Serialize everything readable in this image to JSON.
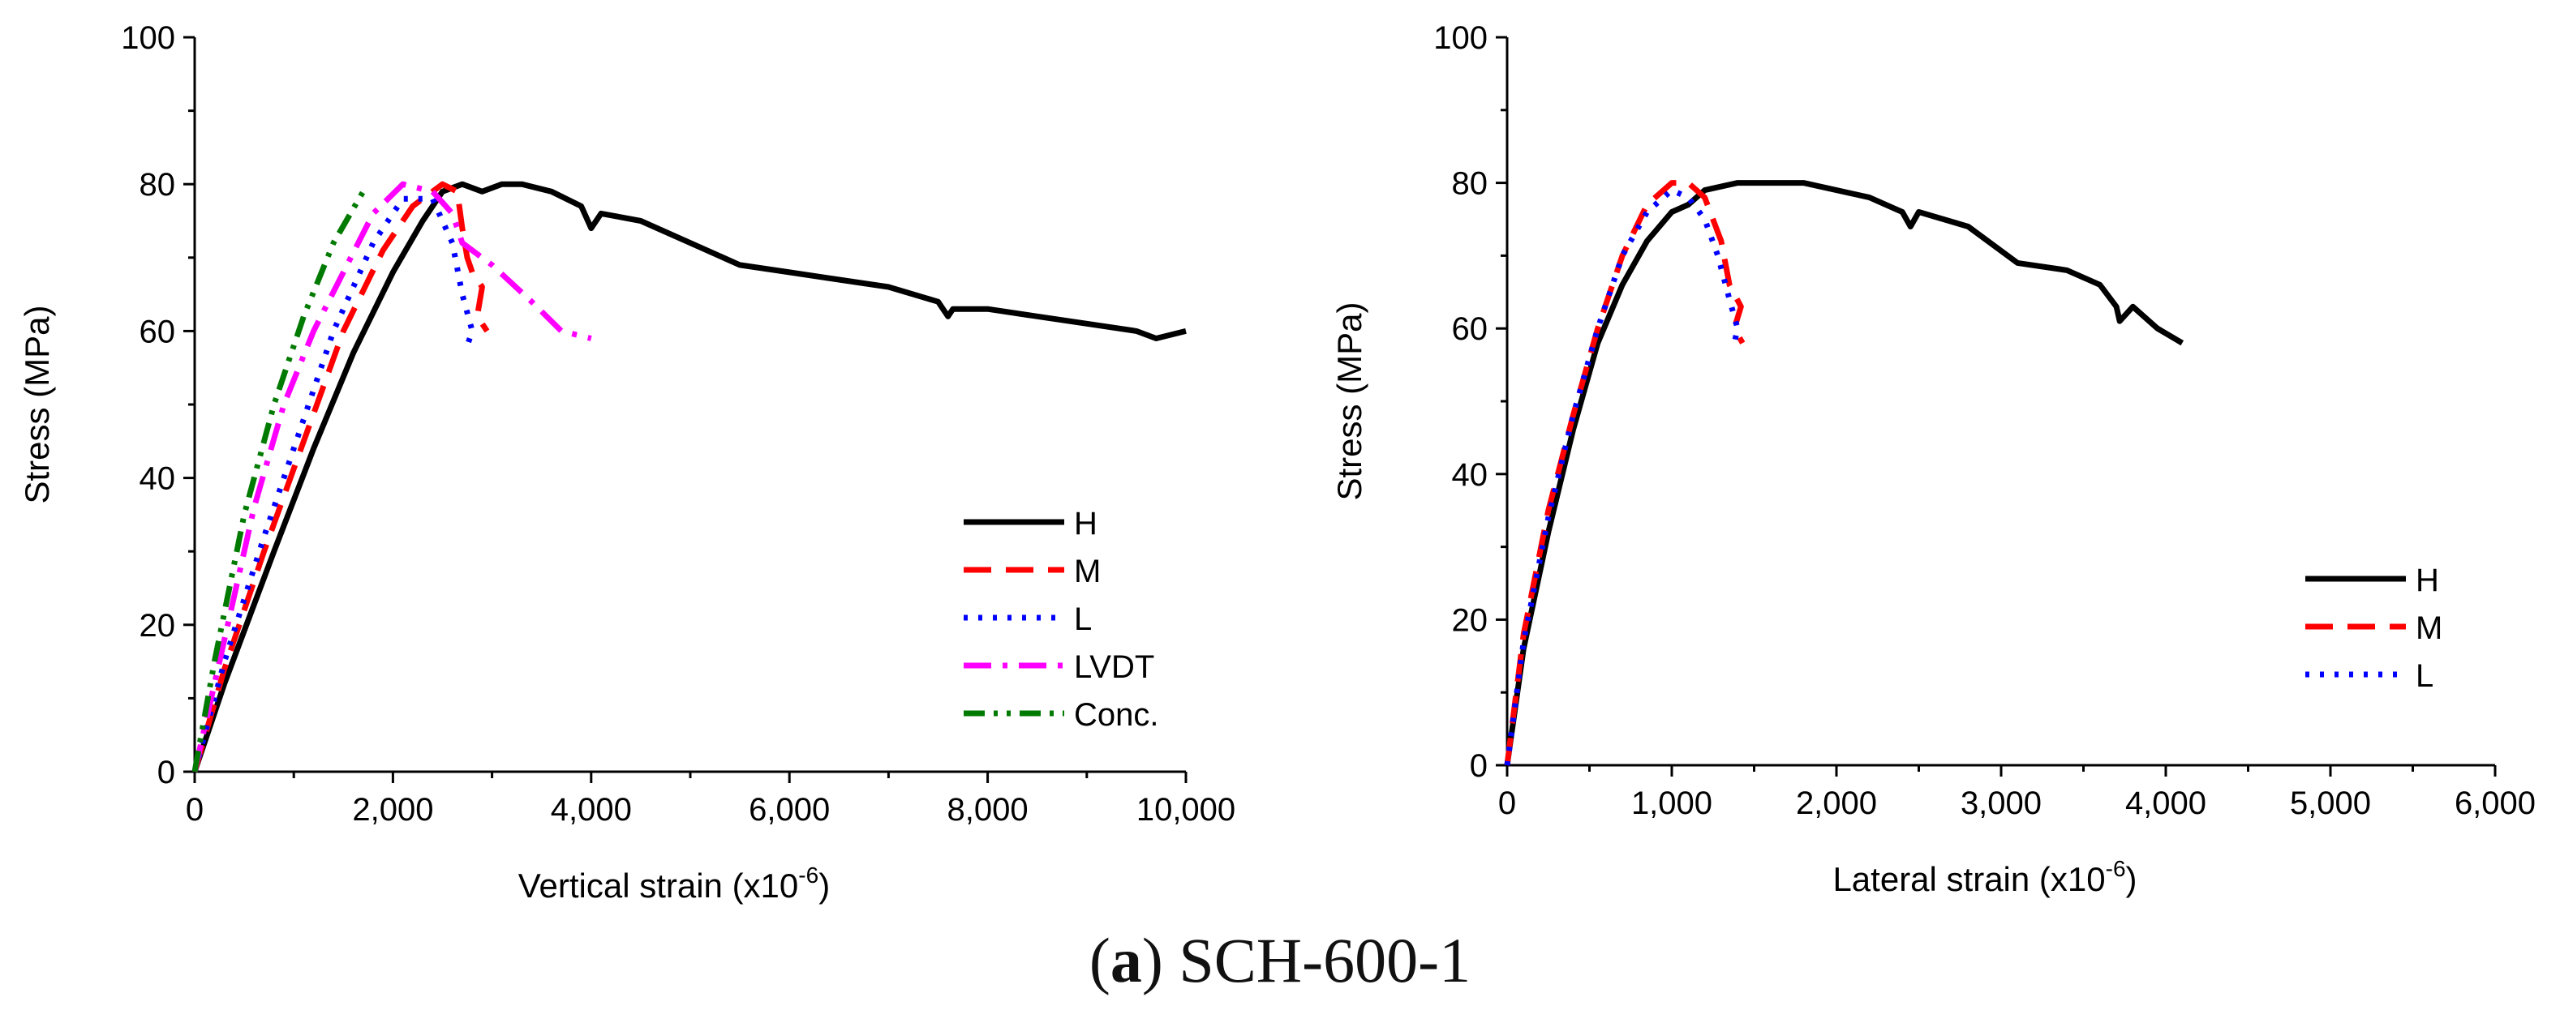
{
  "figure": {
    "caption_letter": "a",
    "caption_prefix": "(",
    "caption_close": ")",
    "caption_text": " SCH-600-1"
  },
  "chart_data": [
    {
      "type": "line",
      "title": "",
      "xlabel": "Vertical strain (x10",
      "xlabel_sup": "-6",
      "xlabel_tail": ")",
      "ylabel": "Stress (MPa)",
      "xlim": [
        0,
        10000
      ],
      "ylim": [
        0,
        100
      ],
      "xticks": [
        0,
        2000,
        4000,
        6000,
        8000,
        10000
      ],
      "xtick_labels": [
        "0",
        "2,000",
        "4,000",
        "6,000",
        "8,000",
        "10,000"
      ],
      "yticks": [
        0,
        20,
        40,
        60,
        80,
        100
      ],
      "ytick_labels": [
        "0",
        "20",
        "40",
        "60",
        "80",
        "100"
      ],
      "grid": false,
      "legend_position": "lower-right",
      "series": [
        {
          "name": "H",
          "color": "#000000",
          "dash": "solid",
          "x": [
            0,
            300,
            800,
            1200,
            1600,
            2000,
            2300,
            2500,
            2700,
            2900,
            3100,
            3300,
            3600,
            3900,
            4000,
            4100,
            4500,
            5000,
            5500,
            6000,
            6500,
            7000,
            7500,
            7600,
            7650,
            7700,
            8000,
            8500,
            9000,
            9500,
            9700,
            10000
          ],
          "y": [
            0,
            12,
            30,
            44,
            57,
            68,
            75,
            79,
            80,
            79,
            80,
            80,
            79,
            77,
            74,
            76,
            75,
            72,
            69,
            68,
            67,
            66,
            64,
            62,
            63,
            63,
            63,
            62,
            61,
            60,
            59,
            60
          ]
        },
        {
          "name": "M",
          "color": "#ff0000",
          "dash": "long",
          "x": [
            0,
            300,
            700,
            1100,
            1500,
            1900,
            2200,
            2500,
            2650,
            2700,
            2750,
            2800,
            2900,
            2850,
            2950
          ],
          "y": [
            0,
            14,
            30,
            45,
            60,
            71,
            77,
            80,
            79,
            74,
            70,
            68,
            66,
            62,
            60
          ]
        },
        {
          "name": "L",
          "color": "#0000ff",
          "dash": "dot",
          "x": [
            0,
            300,
            700,
            1100,
            1400,
            1800,
            2100,
            2400,
            2600,
            2700,
            2800,
            2750
          ],
          "y": [
            0,
            15,
            32,
            48,
            60,
            72,
            78,
            78,
            72,
            65,
            60,
            58
          ]
        },
        {
          "name": "LVDT",
          "color": "#ff00ff",
          "dash": "dashdot",
          "x": [
            0,
            300,
            600,
            900,
            1200,
            1500,
            1800,
            2100,
            2400,
            2600,
            2700,
            3000,
            3400,
            3700,
            4000
          ],
          "y": [
            0,
            18,
            36,
            50,
            60,
            68,
            76,
            80,
            79,
            76,
            72,
            69,
            64,
            60,
            59
          ]
        },
        {
          "name": "Conc.",
          "color": "#007a00",
          "dash": "dashdotdot",
          "x": [
            0,
            200,
            500,
            800,
            1100,
            1400,
            1700
          ],
          "y": [
            0,
            15,
            35,
            50,
            62,
            72,
            79
          ]
        }
      ]
    },
    {
      "type": "line",
      "title": "",
      "xlabel": "Lateral strain (x10",
      "xlabel_sup": "-6",
      "xlabel_tail": ")",
      "ylabel": "Stress (MPa)",
      "xlim": [
        0,
        6000
      ],
      "ylim": [
        0,
        100
      ],
      "xticks": [
        0,
        1000,
        2000,
        3000,
        4000,
        5000,
        6000
      ],
      "xtick_labels": [
        "0",
        "1,000",
        "2,000",
        "3,000",
        "4,000",
        "5,000",
        "6,000"
      ],
      "yticks": [
        0,
        20,
        40,
        60,
        80,
        100
      ],
      "ytick_labels": [
        "0",
        "20",
        "40",
        "60",
        "80",
        "100"
      ],
      "grid": false,
      "legend_position": "lower-right",
      "series": [
        {
          "name": "H",
          "color": "#000000",
          "dash": "solid",
          "x": [
            0,
            100,
            250,
            400,
            550,
            700,
            850,
            1000,
            1100,
            1200,
            1400,
            1600,
            1800,
            2000,
            2200,
            2400,
            2450,
            2500,
            2800,
            3100,
            3400,
            3600,
            3700,
            3720,
            3800,
            3950,
            4100
          ],
          "y": [
            0,
            16,
            32,
            46,
            58,
            66,
            72,
            76,
            77,
            79,
            80,
            80,
            80,
            79,
            78,
            76,
            74,
            76,
            74,
            69,
            68,
            66,
            63,
            61,
            63,
            60,
            58
          ]
        },
        {
          "name": "M",
          "color": "#ff0000",
          "dash": "long",
          "x": [
            0,
            100,
            250,
            400,
            550,
            700,
            850,
            1000,
            1100,
            1200,
            1300,
            1350,
            1420,
            1380,
            1430
          ],
          "y": [
            0,
            18,
            35,
            48,
            60,
            70,
            77,
            80,
            80,
            78,
            72,
            66,
            63,
            60,
            58
          ]
        },
        {
          "name": "L",
          "color": "#0000ff",
          "dash": "dot",
          "x": [
            0,
            100,
            250,
            400,
            550,
            700,
            850,
            1000,
            1100,
            1200,
            1280,
            1350,
            1400,
            1380
          ],
          "y": [
            0,
            17,
            34,
            48,
            60,
            70,
            76,
            79,
            78,
            75,
            70,
            64,
            60,
            58
          ]
        }
      ]
    }
  ]
}
